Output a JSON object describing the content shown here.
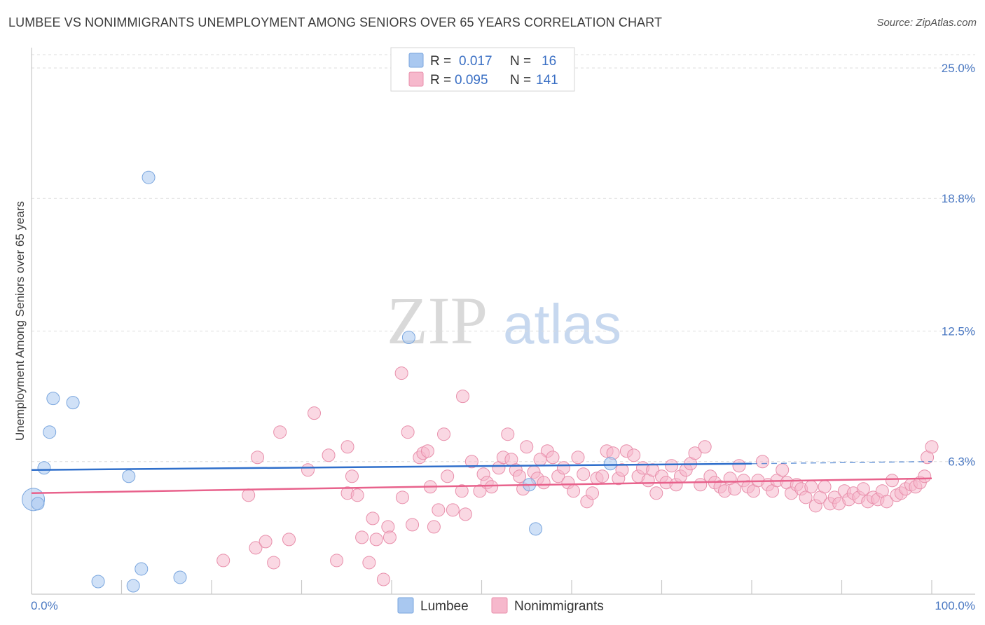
{
  "header": {
    "title": "LUMBEE VS NONIMMIGRANTS UNEMPLOYMENT AMONG SENIORS OVER 65 YEARS CORRELATION CHART",
    "source": "Source: ZipAtlas.com"
  },
  "watermark": {
    "zip": "ZIP",
    "atlas": "atlas"
  },
  "legend": {
    "rows": [
      {
        "r_label": "R =",
        "r_value": "0.017",
        "n_label": "N =",
        "n_value": "16",
        "color": "#a9c8f0"
      },
      {
        "r_label": "R =",
        "r_value": "0.095",
        "n_label": "N =",
        "n_value": "141",
        "color": "#f6b8cc"
      }
    ]
  },
  "chart_data": {
    "type": "scatter",
    "title": "LUMBEE VS NONIMMIGRANTS UNEMPLOYMENT AMONG SENIORS OVER 65 YEARS CORRELATION CHART",
    "xlabel": "",
    "ylabel": "Unemployment Among Seniors over 65 years",
    "xlim": [
      0,
      100
    ],
    "ylim": [
      0,
      25
    ],
    "x_tick_labels": [
      "0.0%",
      "100.0%"
    ],
    "y_ticks": [
      6.3,
      12.5,
      18.8,
      25.0
    ],
    "y_tick_labels": [
      "6.3%",
      "12.5%",
      "18.8%",
      "25.0%"
    ],
    "grid": true,
    "series": [
      {
        "name": "Lumbee",
        "color": "#a9c8f0",
        "stroke": "#7aa6de",
        "trend": {
          "x0": 0,
          "y0": 5.9,
          "x1": 80,
          "y1": 6.2,
          "dash_to": 100,
          "dash_y": 6.3,
          "color": "#2f6fcb"
        },
        "points": [
          {
            "x": 0.2,
            "y": 4.5,
            "big": true
          },
          {
            "x": 0.7,
            "y": 4.3
          },
          {
            "x": 1.4,
            "y": 6.0
          },
          {
            "x": 2.0,
            "y": 7.7
          },
          {
            "x": 2.4,
            "y": 9.3
          },
          {
            "x": 4.6,
            "y": 9.1
          },
          {
            "x": 7.4,
            "y": 0.6
          },
          {
            "x": 10.8,
            "y": 5.6
          },
          {
            "x": 11.3,
            "y": 0.4
          },
          {
            "x": 12.2,
            "y": 1.2
          },
          {
            "x": 13.0,
            "y": 19.8
          },
          {
            "x": 16.5,
            "y": 0.8
          },
          {
            "x": 41.9,
            "y": 12.2
          },
          {
            "x": 55.3,
            "y": 5.2
          },
          {
            "x": 56.0,
            "y": 3.1
          },
          {
            "x": 64.3,
            "y": 6.2
          }
        ]
      },
      {
        "name": "Nonimmigrants",
        "color": "#f6b8cc",
        "stroke": "#e88fab",
        "trend": {
          "x0": 0,
          "y0": 4.8,
          "x1": 100,
          "y1": 5.5,
          "color": "#e8628c"
        },
        "points": [
          {
            "x": 21.3,
            "y": 1.6
          },
          {
            "x": 24.1,
            "y": 4.7
          },
          {
            "x": 25.1,
            "y": 6.5
          },
          {
            "x": 24.9,
            "y": 2.2
          },
          {
            "x": 26.0,
            "y": 2.5
          },
          {
            "x": 26.9,
            "y": 1.5
          },
          {
            "x": 27.6,
            "y": 7.7
          },
          {
            "x": 28.6,
            "y": 2.6
          },
          {
            "x": 30.7,
            "y": 5.9
          },
          {
            "x": 31.4,
            "y": 8.6
          },
          {
            "x": 33.0,
            "y": 6.6
          },
          {
            "x": 33.9,
            "y": 1.6
          },
          {
            "x": 35.1,
            "y": 4.8
          },
          {
            "x": 35.1,
            "y": 7.0
          },
          {
            "x": 35.6,
            "y": 5.6
          },
          {
            "x": 36.2,
            "y": 4.7
          },
          {
            "x": 36.7,
            "y": 2.7
          },
          {
            "x": 37.5,
            "y": 1.5
          },
          {
            "x": 37.9,
            "y": 3.6
          },
          {
            "x": 38.3,
            "y": 2.6
          },
          {
            "x": 39.1,
            "y": 0.7
          },
          {
            "x": 39.6,
            "y": 3.2
          },
          {
            "x": 39.8,
            "y": 2.7
          },
          {
            "x": 41.1,
            "y": 10.5
          },
          {
            "x": 41.2,
            "y": 4.6
          },
          {
            "x": 41.8,
            "y": 7.7
          },
          {
            "x": 42.3,
            "y": 3.3
          },
          {
            "x": 43.1,
            "y": 6.5
          },
          {
            "x": 43.5,
            "y": 6.7
          },
          {
            "x": 44.3,
            "y": 5.1
          },
          {
            "x": 44.7,
            "y": 3.2
          },
          {
            "x": 45.2,
            "y": 4.0
          },
          {
            "x": 45.8,
            "y": 7.6
          },
          {
            "x": 46.2,
            "y": 5.6
          },
          {
            "x": 46.8,
            "y": 4.0
          },
          {
            "x": 47.8,
            "y": 4.9
          },
          {
            "x": 47.9,
            "y": 9.4
          },
          {
            "x": 48.2,
            "y": 3.8
          },
          {
            "x": 48.9,
            "y": 6.3
          },
          {
            "x": 49.8,
            "y": 4.9
          },
          {
            "x": 50.2,
            "y": 5.7
          },
          {
            "x": 50.6,
            "y": 5.3
          },
          {
            "x": 51.1,
            "y": 5.1
          },
          {
            "x": 51.9,
            "y": 6.0
          },
          {
            "x": 52.4,
            "y": 6.5
          },
          {
            "x": 52.9,
            "y": 7.6
          },
          {
            "x": 53.3,
            "y": 6.4
          },
          {
            "x": 53.8,
            "y": 5.9
          },
          {
            "x": 54.2,
            "y": 5.6
          },
          {
            "x": 54.6,
            "y": 5.0
          },
          {
            "x": 55.0,
            "y": 7.0
          },
          {
            "x": 55.8,
            "y": 5.8
          },
          {
            "x": 56.2,
            "y": 5.5
          },
          {
            "x": 56.9,
            "y": 5.3
          },
          {
            "x": 57.3,
            "y": 6.8
          },
          {
            "x": 57.9,
            "y": 6.5
          },
          {
            "x": 58.5,
            "y": 5.6
          },
          {
            "x": 59.1,
            "y": 6.0
          },
          {
            "x": 59.6,
            "y": 5.3
          },
          {
            "x": 60.2,
            "y": 4.9
          },
          {
            "x": 60.7,
            "y": 6.5
          },
          {
            "x": 61.3,
            "y": 5.7
          },
          {
            "x": 61.7,
            "y": 4.4
          },
          {
            "x": 62.3,
            "y": 4.8
          },
          {
            "x": 62.8,
            "y": 5.5
          },
          {
            "x": 63.4,
            "y": 5.6
          },
          {
            "x": 63.9,
            "y": 6.8
          },
          {
            "x": 64.6,
            "y": 6.7
          },
          {
            "x": 65.2,
            "y": 5.5
          },
          {
            "x": 65.6,
            "y": 5.9
          },
          {
            "x": 66.1,
            "y": 6.8
          },
          {
            "x": 66.9,
            "y": 6.6
          },
          {
            "x": 67.4,
            "y": 5.6
          },
          {
            "x": 67.9,
            "y": 6.0
          },
          {
            "x": 68.5,
            "y": 5.4
          },
          {
            "x": 69.0,
            "y": 5.9
          },
          {
            "x": 69.4,
            "y": 4.8
          },
          {
            "x": 70.0,
            "y": 5.6
          },
          {
            "x": 70.5,
            "y": 5.3
          },
          {
            "x": 71.1,
            "y": 6.1
          },
          {
            "x": 71.6,
            "y": 5.2
          },
          {
            "x": 72.1,
            "y": 5.6
          },
          {
            "x": 72.7,
            "y": 5.9
          },
          {
            "x": 73.2,
            "y": 6.2
          },
          {
            "x": 73.7,
            "y": 6.7
          },
          {
            "x": 74.3,
            "y": 5.2
          },
          {
            "x": 74.8,
            "y": 7.0
          },
          {
            "x": 75.4,
            "y": 5.6
          },
          {
            "x": 75.9,
            "y": 5.3
          },
          {
            "x": 76.5,
            "y": 5.1
          },
          {
            "x": 77.0,
            "y": 4.9
          },
          {
            "x": 77.6,
            "y": 5.5
          },
          {
            "x": 78.1,
            "y": 5.0
          },
          {
            "x": 78.6,
            "y": 6.1
          },
          {
            "x": 79.1,
            "y": 5.4
          },
          {
            "x": 79.6,
            "y": 5.1
          },
          {
            "x": 80.2,
            "y": 4.9
          },
          {
            "x": 80.7,
            "y": 5.4
          },
          {
            "x": 81.2,
            "y": 6.3
          },
          {
            "x": 81.8,
            "y": 5.2
          },
          {
            "x": 82.3,
            "y": 4.9
          },
          {
            "x": 82.8,
            "y": 5.4
          },
          {
            "x": 83.4,
            "y": 5.9
          },
          {
            "x": 83.9,
            "y": 5.3
          },
          {
            "x": 84.4,
            "y": 4.8
          },
          {
            "x": 85.0,
            "y": 5.2
          },
          {
            "x": 85.5,
            "y": 5.0
          },
          {
            "x": 86.0,
            "y": 4.6
          },
          {
            "x": 86.6,
            "y": 5.1
          },
          {
            "x": 87.1,
            "y": 4.2
          },
          {
            "x": 87.6,
            "y": 4.6
          },
          {
            "x": 88.1,
            "y": 5.1
          },
          {
            "x": 88.7,
            "y": 4.3
          },
          {
            "x": 89.2,
            "y": 4.6
          },
          {
            "x": 89.7,
            "y": 4.3
          },
          {
            "x": 90.3,
            "y": 4.9
          },
          {
            "x": 90.8,
            "y": 4.5
          },
          {
            "x": 91.3,
            "y": 4.8
          },
          {
            "x": 91.9,
            "y": 4.6
          },
          {
            "x": 92.4,
            "y": 5.0
          },
          {
            "x": 92.9,
            "y": 4.4
          },
          {
            "x": 93.5,
            "y": 4.6
          },
          {
            "x": 94.0,
            "y": 4.5
          },
          {
            "x": 94.5,
            "y": 4.9
          },
          {
            "x": 95.0,
            "y": 4.4
          },
          {
            "x": 95.6,
            "y": 5.4
          },
          {
            "x": 96.1,
            "y": 4.7
          },
          {
            "x": 96.6,
            "y": 4.8
          },
          {
            "x": 97.1,
            "y": 5.0
          },
          {
            "x": 97.7,
            "y": 5.2
          },
          {
            "x": 98.2,
            "y": 5.1
          },
          {
            "x": 98.7,
            "y": 5.3
          },
          {
            "x": 99.2,
            "y": 5.6
          },
          {
            "x": 99.5,
            "y": 6.5
          },
          {
            "x": 100.0,
            "y": 7.0
          },
          {
            "x": 56.5,
            "y": 6.4
          },
          {
            "x": 44.0,
            "y": 6.8
          }
        ]
      }
    ]
  },
  "bottom_legend": {
    "items": [
      "Lumbee",
      "Nonimmigrants"
    ]
  }
}
